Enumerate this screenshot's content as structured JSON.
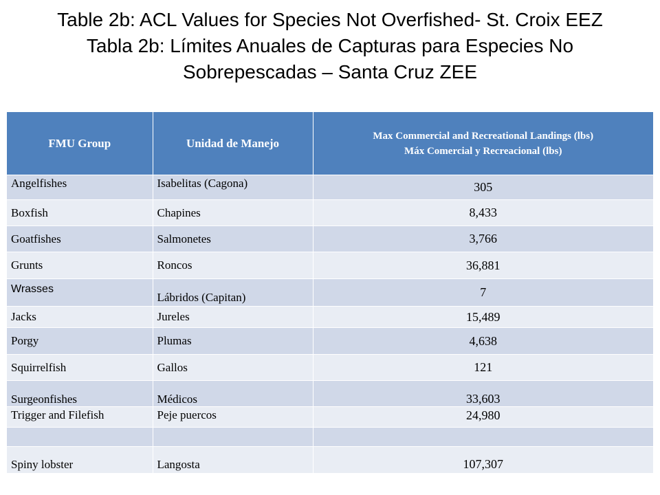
{
  "title": {
    "line1": "Table 2b:  ACL Values for Species Not Overfished- St. Croix EEZ",
    "line2": "Tabla 2b: Límites Anuales de Capturas para Especies No",
    "line3": "Sobrepescadas – Santa Cruz ZEE"
  },
  "table": {
    "headers": {
      "fmu_group": "FMU Group",
      "unidad": "Unidad de Manejo",
      "max_en": "Max Commercial and Recreational Landings (lbs)",
      "max_es": "Máx Comercial y Recreacional (lbs)"
    },
    "rows": [
      {
        "fmu": "Angelfishes",
        "unidad": "Isabelitas (Cagona)",
        "max": "305"
      },
      {
        "fmu": "Boxfish",
        "unidad": "Chapines",
        "max": "8,433"
      },
      {
        "fmu": "Goatfishes",
        "unidad": "Salmonetes",
        "max": "3,766"
      },
      {
        "fmu": "Grunts",
        "unidad": "Roncos",
        "max": "36,881"
      },
      {
        "fmu": "Wrasses",
        "unidad": "Lábridos (Capitan)",
        "max": "7"
      },
      {
        "fmu": "Jacks",
        "unidad": "Jureles",
        "max": "15,489"
      },
      {
        "fmu": "Porgy",
        "unidad": "Plumas",
        "max": "4,638"
      },
      {
        "fmu": "Squirrelfish",
        "unidad": "Gallos",
        "max": "121"
      },
      {
        "fmu": "Surgeonfishes",
        "unidad": "Médicos",
        "max": "33,603"
      },
      {
        "fmu": "Trigger and Filefish",
        "unidad": "Peje puercos",
        "max": "24,980"
      },
      {
        "fmu": "",
        "unidad": "",
        "max": ""
      },
      {
        "fmu": "Spiny lobster",
        "unidad": "Langosta",
        "max": "107,307"
      }
    ]
  }
}
